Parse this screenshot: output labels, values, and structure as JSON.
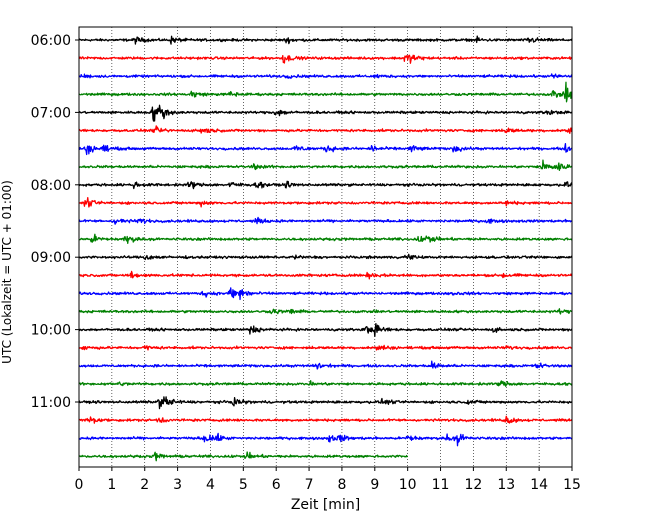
{
  "chart_data": {
    "type": "line",
    "xlabel": "Zeit  [min]",
    "ylabel": "UTC (Lokalzeit = UTC + 01:00)",
    "xlim": [
      0,
      15
    ],
    "x_ticks": [
      0,
      1,
      2,
      3,
      4,
      5,
      6,
      7,
      8,
      9,
      10,
      11,
      12,
      13,
      14,
      15
    ],
    "x_tick_labels": [
      "0",
      "1",
      "2",
      "3",
      "4",
      "5",
      "6",
      "7",
      "8",
      "9",
      "10",
      "11",
      "12",
      "13",
      "14",
      "15"
    ],
    "y_tick_labels": [
      "06:00",
      "07:00",
      "08:00",
      "09:00",
      "10:00",
      "11:00"
    ],
    "y_tick_trace_index": [
      0,
      4,
      8,
      12,
      16,
      20
    ],
    "trace_minutes": 15,
    "grid": "vertical dotted",
    "colors": [
      "#000000",
      "#ff0000",
      "#0000ff",
      "#008000"
    ],
    "traces": [
      {
        "color": "#000000",
        "end_min": 15,
        "events": [
          [
            1.7,
            0.6
          ],
          [
            2.8,
            0.6
          ],
          [
            6.3,
            0.5
          ],
          [
            12.1,
            0.4
          ],
          [
            13.7,
            0.7
          ]
        ]
      },
      {
        "color": "#ff0000",
        "end_min": 15,
        "events": [
          [
            6.2,
            1.0
          ],
          [
            9.9,
            0.9
          ],
          [
            10.1,
            0.6
          ]
        ]
      },
      {
        "color": "#0000ff",
        "end_min": 15,
        "events": [
          [
            0.1,
            0.3
          ],
          [
            6.3,
            0.3
          ],
          [
            9.0,
            0.3
          ],
          [
            14.4,
            0.4
          ]
        ]
      },
      {
        "color": "#008000",
        "end_min": 15,
        "events": [
          [
            3.4,
            0.7
          ],
          [
            4.6,
            0.5
          ],
          [
            14.8,
            1.6
          ],
          [
            14.4,
            0.9
          ]
        ]
      },
      {
        "color": "#000000",
        "end_min": 15,
        "events": [
          [
            2.25,
            1.8
          ],
          [
            2.45,
            1.2
          ],
          [
            6.0,
            0.9
          ],
          [
            14.2,
            0.5
          ]
        ]
      },
      {
        "color": "#ff0000",
        "end_min": 15,
        "events": [
          [
            2.3,
            0.6
          ],
          [
            3.7,
            0.9
          ],
          [
            13.0,
            0.5
          ],
          [
            14.9,
            1.3
          ]
        ]
      },
      {
        "color": "#0000ff",
        "end_min": 15,
        "events": [
          [
            0.2,
            1.2
          ],
          [
            0.7,
            0.7
          ],
          [
            6.6,
            0.7
          ],
          [
            7.5,
            0.8
          ],
          [
            8.9,
            0.7
          ],
          [
            10.1,
            0.8
          ],
          [
            11.4,
            0.8
          ],
          [
            14.8,
            0.6
          ]
        ]
      },
      {
        "color": "#008000",
        "end_min": 15,
        "events": [
          [
            5.3,
            0.5
          ],
          [
            14.1,
            1.3
          ],
          [
            14.5,
            1.1
          ]
        ]
      },
      {
        "color": "#000000",
        "end_min": 15,
        "events": [
          [
            1.65,
            0.6
          ],
          [
            3.35,
            0.8
          ],
          [
            4.6,
            0.6
          ],
          [
            5.4,
            0.6
          ],
          [
            6.3,
            0.5
          ],
          [
            14.8,
            0.5
          ]
        ]
      },
      {
        "color": "#ff0000",
        "end_min": 15,
        "events": [
          [
            0.2,
            0.9
          ],
          [
            3.7,
            0.5
          ],
          [
            13.0,
            0.4
          ]
        ]
      },
      {
        "color": "#0000ff",
        "end_min": 15,
        "events": [
          [
            1.1,
            0.7
          ],
          [
            1.8,
            0.6
          ],
          [
            5.4,
            0.5
          ],
          [
            12.4,
            0.4
          ]
        ]
      },
      {
        "color": "#008000",
        "end_min": 15,
        "events": [
          [
            0.4,
            0.9
          ],
          [
            1.4,
            1.0
          ],
          [
            10.3,
            0.5
          ],
          [
            10.6,
            0.7
          ]
        ]
      },
      {
        "color": "#000000",
        "end_min": 15,
        "events": [
          [
            2.0,
            0.7
          ],
          [
            9.9,
            0.6
          ],
          [
            6.5,
            0.4
          ]
        ]
      },
      {
        "color": "#ff0000",
        "end_min": 15,
        "events": [
          [
            1.6,
            0.7
          ],
          [
            8.8,
            0.7
          ],
          [
            12.9,
            0.5
          ]
        ]
      },
      {
        "color": "#0000ff",
        "end_min": 15,
        "events": [
          [
            3.8,
            0.6
          ],
          [
            4.6,
            1.3
          ],
          [
            4.9,
            1.2
          ],
          [
            11.3,
            0.4
          ]
        ]
      },
      {
        "color": "#008000",
        "end_min": 15,
        "events": [
          [
            5.9,
            0.5
          ],
          [
            6.4,
            0.4
          ],
          [
            14.6,
            0.4
          ]
        ]
      },
      {
        "color": "#000000",
        "end_min": 15,
        "events": [
          [
            5.2,
            1.0
          ],
          [
            8.7,
            0.8
          ],
          [
            9.0,
            0.9
          ],
          [
            12.6,
            0.4
          ]
        ]
      },
      {
        "color": "#ff0000",
        "end_min": 15,
        "events": [
          [
            0.1,
            0.5
          ],
          [
            2.0,
            0.4
          ],
          [
            9.1,
            0.7
          ],
          [
            13.0,
            0.4
          ]
        ]
      },
      {
        "color": "#0000ff",
        "end_min": 15,
        "events": [
          [
            7.2,
            0.8
          ],
          [
            10.7,
            0.9
          ],
          [
            13.9,
            0.6
          ]
        ]
      },
      {
        "color": "#008000",
        "end_min": 15,
        "events": [
          [
            1.2,
            0.3
          ],
          [
            7.0,
            0.4
          ],
          [
            12.8,
            0.8
          ]
        ]
      },
      {
        "color": "#000000",
        "end_min": 15,
        "events": [
          [
            2.6,
            1.2
          ],
          [
            2.4,
            0.9
          ],
          [
            4.7,
            0.9
          ],
          [
            9.2,
            0.6
          ],
          [
            11.8,
            0.4
          ]
        ]
      },
      {
        "color": "#ff0000",
        "end_min": 15,
        "events": [
          [
            0.3,
            0.9
          ],
          [
            2.4,
            0.6
          ],
          [
            13.0,
            0.8
          ]
        ]
      },
      {
        "color": "#0000ff",
        "end_min": 15,
        "events": [
          [
            3.8,
            0.9
          ],
          [
            4.1,
            0.8
          ],
          [
            7.6,
            0.6
          ],
          [
            7.9,
            0.7
          ],
          [
            10.0,
            0.8
          ],
          [
            11.5,
            1.0
          ],
          [
            11.2,
            0.6
          ]
        ]
      },
      {
        "color": "#008000",
        "end_min": 10,
        "events": [
          [
            2.3,
            0.7
          ],
          [
            5.1,
            0.6
          ]
        ]
      }
    ]
  }
}
